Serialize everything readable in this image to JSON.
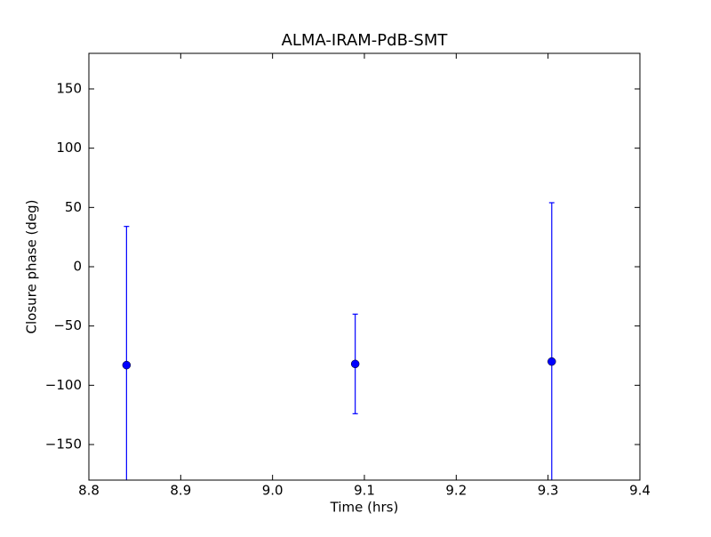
{
  "chart_data": {
    "type": "errorbar",
    "title": "ALMA-IRAM-PdB-SMT",
    "x_label": "Time (hrs)",
    "y_label": "Closure phase (deg)",
    "x": [
      8.841,
      9.09,
      9.304
    ],
    "values": [
      -83,
      -82,
      -80
    ],
    "errors": [
      117,
      42,
      134
    ],
    "color": "#0000ff",
    "xlim": [
      8.8,
      9.4
    ],
    "ylim": [
      -180,
      180
    ],
    "xticks": [
      8.8,
      8.9,
      {
        "value": 9,
        "label": "9.0"
      },
      9.1,
      9.2,
      9.3,
      9.4
    ],
    "yticks": [
      {
        "value": -150,
        "label": "−150"
      },
      {
        "value": -100,
        "label": "−100"
      },
      {
        "value": -50,
        "label": "−50"
      },
      0,
      50,
      100,
      150
    ]
  }
}
